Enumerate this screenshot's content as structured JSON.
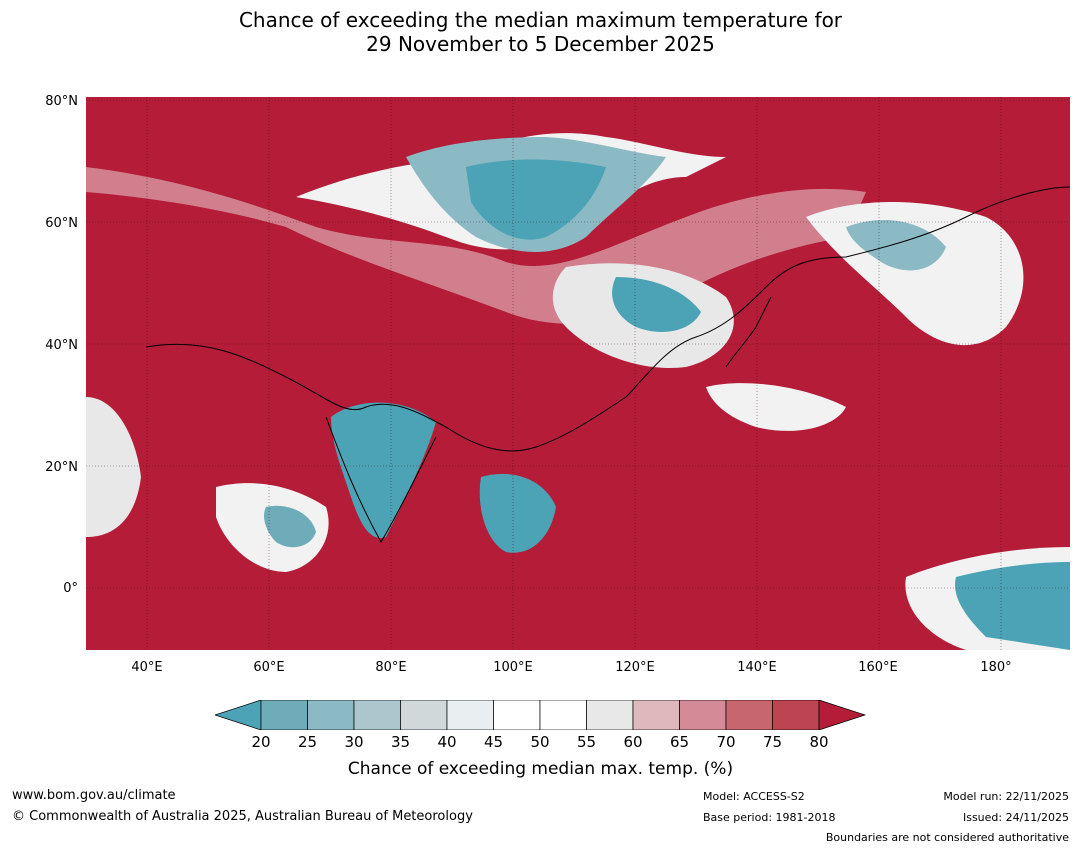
{
  "title": {
    "line1": "Chance of exceeding the median maximum temperature for",
    "line2": "29 November to 5 December 2025"
  },
  "axes": {
    "lat_labels": [
      "80°N",
      "60°N",
      "40°N",
      "20°N",
      "0°"
    ],
    "lon_labels": [
      "40°E",
      "60°E",
      "80°E",
      "100°E",
      "120°E",
      "140°E",
      "160°E",
      "180°"
    ],
    "lat_range": [
      -10,
      80
    ],
    "lon_range": [
      30,
      192
    ]
  },
  "colorbar": {
    "ticks": [
      "20",
      "25",
      "30",
      "35",
      "40",
      "45",
      "50",
      "55",
      "60",
      "65",
      "70",
      "75",
      "80"
    ],
    "colors": [
      "#4ba3b5",
      "#6eacb9",
      "#8bb9c4",
      "#abc6cc",
      "#d1d8da",
      "#e9eff1",
      "#ffffff",
      "#ffffff",
      "#e8e8e8",
      "#dfb8bd",
      "#d48b97",
      "#c8666f",
      "#bc4552",
      "#b41c38"
    ],
    "label": "Chance of exceeding median max. temp. (%)"
  },
  "colors": {
    "high": "#b41c38",
    "low": "#4ba3b5"
  },
  "footer": {
    "website": "www.bom.gov.au/climate",
    "copyright": "© Commonwealth of Australia 2025, Australian Bureau of Meteorology",
    "model": "Model: ACCESS-S2",
    "base_period": "Base period: 1981-2018",
    "model_run": "Model run: 22/11/2025",
    "issued": "Issued: 24/11/2025",
    "disclaimer": "Boundaries are not considered authoritative"
  }
}
